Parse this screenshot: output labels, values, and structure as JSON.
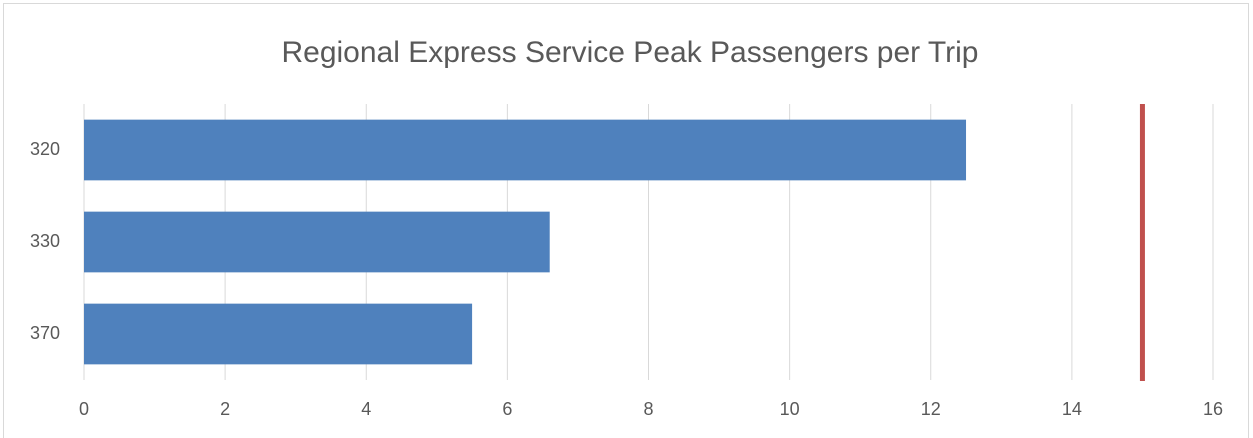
{
  "chart_data": {
    "type": "bar",
    "orientation": "horizontal",
    "title": "Regional Express Service Peak Passengers per Trip",
    "categories": [
      "320",
      "330",
      "370"
    ],
    "values": [
      12.5,
      6.6,
      5.5
    ],
    "color": "#4f81bd",
    "reference_line": 15,
    "reference_color": "#c0504d",
    "xlim": [
      0,
      16
    ],
    "xticks": [
      0,
      2,
      4,
      6,
      8,
      10,
      12,
      14,
      16
    ],
    "grid": true
  }
}
